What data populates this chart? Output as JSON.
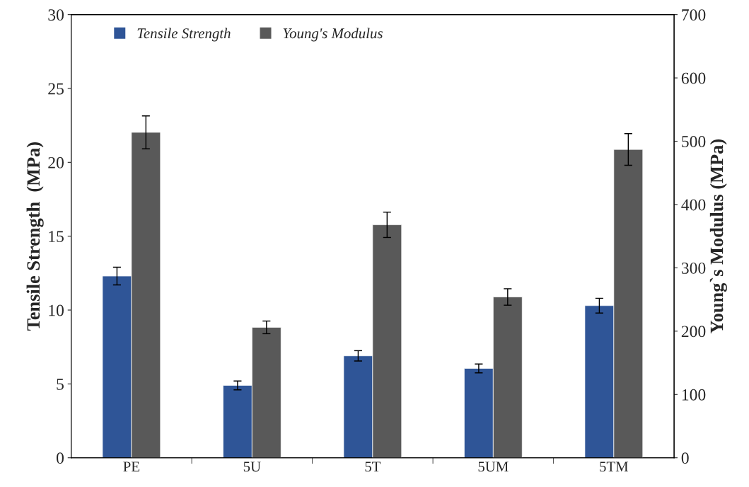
{
  "chart_data": {
    "type": "bar",
    "categories": [
      "PE",
      "5U",
      "5T",
      "5UM",
      "5TM"
    ],
    "ylabel": "Tensile Strength  (MPa)",
    "y2label": "Young`s Modulus (MPa)",
    "series": [
      {
        "name": "Tensile Strength",
        "color": "#2f5597",
        "values": [
          12.3,
          4.9,
          6.9,
          6.05,
          10.3
        ],
        "errors": [
          0.6,
          0.3,
          0.35,
          0.3,
          0.5
        ]
      },
      {
        "name": "Young's Modulus",
        "color": "#595959",
        "axis": "y2",
        "values": [
          514,
          206,
          368,
          254,
          487
        ],
        "errors": [
          26,
          10,
          20,
          13,
          25
        ]
      }
    ],
    "ylim": [
      0,
      30
    ],
    "yticks": [
      0,
      5,
      10,
      15,
      20,
      25,
      30
    ],
    "y2lim": [
      0,
      700
    ],
    "y2ticks": [
      0,
      100,
      200,
      300,
      400,
      500,
      600,
      700
    ],
    "grid": false,
    "legend": "top left"
  }
}
